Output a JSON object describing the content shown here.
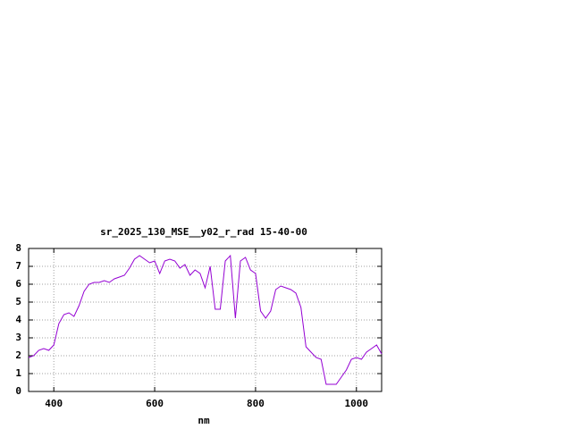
{
  "chart_data": {
    "type": "line",
    "title": "sr_2025_130_MSE__y02_r_rad 15-40-00",
    "x_label": "nm",
    "x": [
      350,
      360,
      370,
      380,
      390,
      400,
      410,
      420,
      430,
      440,
      450,
      460,
      470,
      480,
      490,
      500,
      510,
      520,
      530,
      540,
      550,
      560,
      570,
      580,
      590,
      600,
      610,
      620,
      630,
      640,
      650,
      660,
      670,
      680,
      690,
      700,
      710,
      720,
      730,
      740,
      750,
      760,
      770,
      780,
      790,
      800,
      810,
      820,
      830,
      840,
      850,
      860,
      870,
      880,
      890,
      900,
      910,
      920,
      930,
      940,
      950,
      960,
      970,
      980,
      990,
      1000,
      1010,
      1020,
      1030,
      1040,
      1050
    ],
    "series": [
      {
        "color": "#9400d3",
        "values": [
          1.9,
          2.0,
          2.3,
          2.4,
          2.3,
          2.6,
          3.8,
          4.3,
          4.4,
          4.2,
          4.8,
          5.6,
          6.0,
          6.1,
          6.1,
          6.2,
          6.1,
          6.3,
          6.4,
          6.5,
          6.9,
          7.4,
          7.6,
          7.4,
          7.2,
          7.3,
          6.6,
          7.3,
          7.4,
          7.3,
          6.9,
          7.1,
          6.5,
          6.8,
          6.6,
          5.8,
          7.0,
          4.6,
          4.6,
          7.3,
          7.6,
          4.1,
          7.3,
          7.5,
          6.8,
          6.6,
          4.5,
          4.1,
          4.5,
          5.7,
          5.9,
          5.8,
          5.7,
          5.5,
          4.7,
          2.5,
          2.2,
          1.9,
          1.8,
          0.4,
          0.4,
          0.4,
          0.8,
          1.2,
          1.8,
          1.9,
          1.8,
          2.2,
          2.4,
          2.6,
          2.1
        ]
      }
    ],
    "xlim": [
      350,
      1050
    ],
    "ylim": [
      0,
      8
    ],
    "xticks": [
      400,
      600,
      800,
      1000
    ],
    "yticks": [
      0,
      1,
      2,
      3,
      4,
      5,
      6,
      7,
      8
    ],
    "grid": true
  }
}
